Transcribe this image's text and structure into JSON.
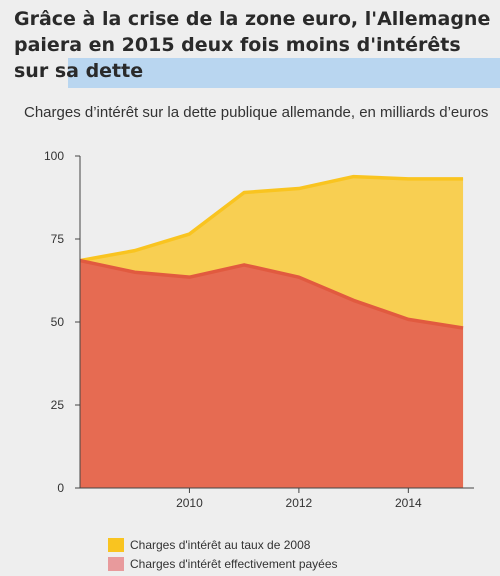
{
  "headline": {
    "text": "Grâce à la crise de la zone euro, l'Allemagne paiera en 2015 deux fois moins d'intérêts sur sa dette"
  },
  "chart_data": {
    "type": "area",
    "title": "Charges d’intérêt sur la dette publique allemande, en milliards d’euros",
    "xlabel": "",
    "ylabel": "",
    "x": [
      2008,
      2009,
      2010,
      2011,
      2012,
      2013,
      2014,
      2015
    ],
    "xlim": [
      2008,
      2015.2
    ],
    "ylim": [
      0,
      100
    ],
    "x_ticks": [
      "2010",
      "2012",
      "2014"
    ],
    "x_tick_values": [
      2010,
      2012,
      2014
    ],
    "y_ticks": [
      "0",
      "25",
      "50",
      "75",
      "100"
    ],
    "y_tick_values": [
      0,
      25,
      50,
      75,
      100
    ],
    "grid": false,
    "legend_position": "bottom-left",
    "series": [
      {
        "name": "Charges d'intérêt au taux de 2008",
        "color": "#f8cf52",
        "line_color": "#f9c420",
        "values": [
          68.5,
          71.5,
          76.5,
          89,
          90.2,
          93.8,
          93.1,
          93.1
        ]
      },
      {
        "name": "Charges d'intérêt effectivement payées",
        "color": "#e66b52",
        "line_color": "#e15a3f",
        "legend_color": "#e89a9c",
        "values": [
          68.5,
          65,
          63.5,
          67.2,
          63.5,
          56.5,
          50.8,
          48.2
        ]
      }
    ]
  }
}
